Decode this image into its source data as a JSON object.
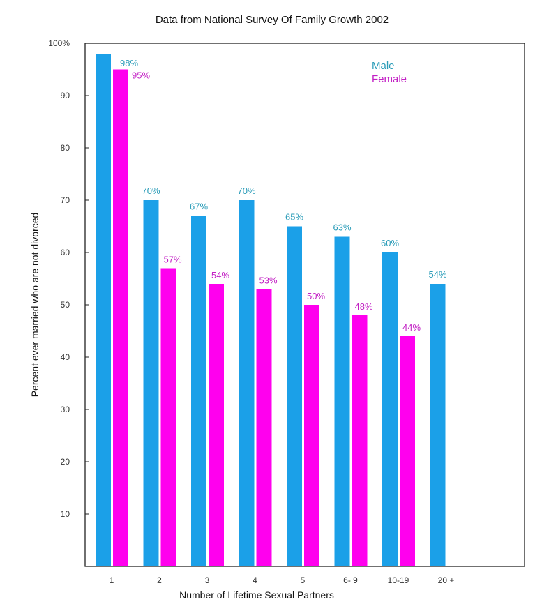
{
  "colors": {
    "male": "#1ba0e8",
    "female": "#ff00ee",
    "male_label": "#2a9cb8",
    "female_label": "#c21fc4",
    "axis": "#222222"
  },
  "chart_data": {
    "type": "bar",
    "title": "Data from National Survey Of Family Growth 2002",
    "xlabel": "Number of Lifetime Sexual Partners",
    "ylabel": "Percent ever married who are not divorced",
    "ylim": [
      0,
      100
    ],
    "yticks": [
      {
        "value": 10,
        "label": "10"
      },
      {
        "value": 20,
        "label": "20"
      },
      {
        "value": 30,
        "label": "30"
      },
      {
        "value": 40,
        "label": "40"
      },
      {
        "value": 50,
        "label": "50"
      },
      {
        "value": 60,
        "label": "60"
      },
      {
        "value": 70,
        "label": "70"
      },
      {
        "value": 80,
        "label": "80"
      },
      {
        "value": 90,
        "label": "90"
      },
      {
        "value": 100,
        "label": "100%"
      }
    ],
    "categories": [
      "1",
      "2",
      "3",
      "4",
      "5",
      "6- 9",
      "10-19",
      "20 +"
    ],
    "series": [
      {
        "name": "Male",
        "key": "male",
        "values": [
          98,
          70,
          67,
          70,
          65,
          63,
          60,
          54
        ],
        "labels": [
          "98%",
          "70%",
          "67%",
          "70%",
          "65%",
          "63%",
          "60%",
          "54%"
        ]
      },
      {
        "name": "Female",
        "key": "female",
        "values": [
          95,
          57,
          54,
          53,
          50,
          48,
          44,
          null
        ],
        "labels": [
          "95%",
          "57%",
          "54%",
          "53%",
          "50%",
          "48%",
          "44%",
          null
        ]
      }
    ],
    "legend_position": "top-right",
    "grid": false
  }
}
